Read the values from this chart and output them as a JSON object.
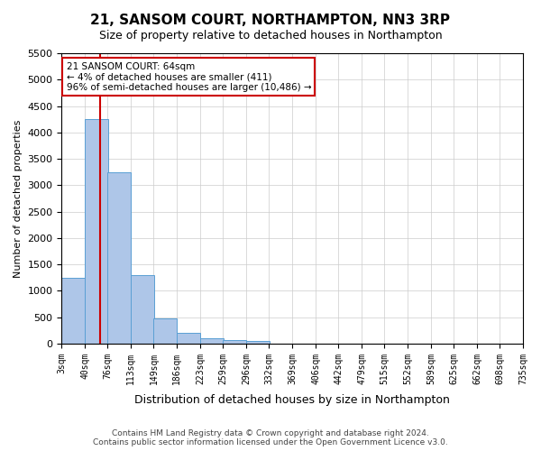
{
  "title": "21, SANSOM COURT, NORTHAMPTON, NN3 3RP",
  "subtitle": "Size of property relative to detached houses in Northampton",
  "xlabel": "Distribution of detached houses by size in Northampton",
  "ylabel": "Number of detached properties",
  "footer_line1": "Contains HM Land Registry data © Crown copyright and database right 2024.",
  "footer_line2": "Contains public sector information licensed under the Open Government Licence v3.0.",
  "annotation_line1": "21 SANSOM COURT: 64sqm",
  "annotation_line2": "← 4% of detached houses are smaller (411)",
  "annotation_line3": "96% of semi-detached houses are larger (10,486) →",
  "bar_color": "#aec6e8",
  "bar_edge_color": "#5a9fd4",
  "ref_line_color": "#cc0000",
  "ref_line_x": 64,
  "annotation_box_color": "#cc0000",
  "categories": [
    "3sqm",
    "40sqm",
    "76sqm",
    "113sqm",
    "149sqm",
    "186sqm",
    "223sqm",
    "259sqm",
    "296sqm",
    "332sqm",
    "369sqm",
    "406sqm",
    "442sqm",
    "479sqm",
    "515sqm",
    "552sqm",
    "589sqm",
    "625sqm",
    "662sqm",
    "698sqm",
    "735sqm"
  ],
  "bin_edges": [
    3,
    40,
    76,
    113,
    149,
    186,
    223,
    259,
    296,
    332,
    369,
    406,
    442,
    479,
    515,
    552,
    589,
    625,
    662,
    698,
    735
  ],
  "values": [
    1250,
    4250,
    3250,
    1300,
    475,
    200,
    100,
    75,
    50,
    0,
    0,
    0,
    0,
    0,
    0,
    0,
    0,
    0,
    0,
    0
  ],
  "ylim": [
    0,
    5500
  ],
  "yticks": [
    0,
    500,
    1000,
    1500,
    2000,
    2500,
    3000,
    3500,
    4000,
    4500,
    5000,
    5500
  ],
  "background_color": "#ffffff",
  "grid_color": "#cccccc"
}
